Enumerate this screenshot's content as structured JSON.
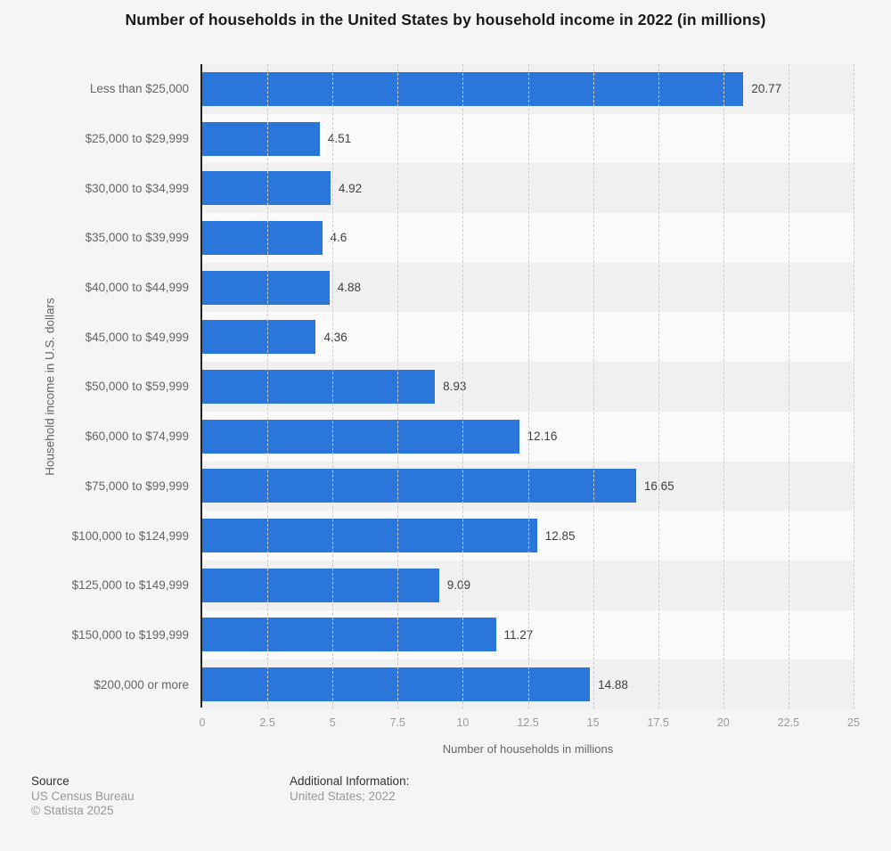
{
  "chart_data": {
    "type": "bar",
    "orientation": "horizontal",
    "title": "Number of households in the United States by household income in 2022 (in millions)",
    "categories": [
      "Less than $25,000",
      "$25,000 to $29,999",
      "$30,000 to $34,999",
      "$35,000 to $39,999",
      "$40,000 to $44,999",
      "$45,000 to $49,999",
      "$50,000 to $59,999",
      "$60,000 to $74,999",
      "$75,000 to $99,999",
      "$100,000 to $124,999",
      "$125,000 to $149,999",
      "$150,000 to $199,999",
      "$200,000 or more"
    ],
    "values": [
      20.77,
      4.51,
      4.92,
      4.6,
      4.88,
      4.36,
      8.93,
      12.16,
      16.65,
      12.85,
      9.09,
      11.27,
      14.88
    ],
    "value_labels": [
      "20.77",
      "4.51",
      "4.92",
      "4.6",
      "4.88",
      "4.36",
      "8.93",
      "12.16",
      "16.65",
      "12.85",
      "9.09",
      "11.27",
      "14.88"
    ],
    "xlabel": "Number of households in millions",
    "ylabel": "Household income in U.S. dollars",
    "xlim": [
      0,
      25
    ],
    "xticks": [
      0,
      2.5,
      5,
      7.5,
      10,
      12.5,
      15,
      17.5,
      20,
      22.5,
      25
    ],
    "xtick_labels": [
      "0",
      "2.5",
      "5",
      "7.5",
      "10",
      "12.5",
      "15",
      "17.5",
      "20",
      "22.5",
      "25"
    ],
    "grid": "vertical-dashed",
    "legend": "none",
    "colors": {
      "bar": "#2a76da",
      "band_odd": "#f0f0f0",
      "band_even": "#fafafa",
      "page_background": "#f5f5f5",
      "gridline": "#cccccc",
      "axis_line": "#222222",
      "title_text": "#1a1a1a",
      "category_text": "#666666",
      "value_text": "#404040",
      "tick_text": "#999999"
    }
  },
  "footer": {
    "source_label": "Source",
    "source_lines": [
      "US Census Bureau",
      "© Statista 2025"
    ],
    "additional_label": "Additional Information:",
    "additional_lines": [
      "United States; 2022"
    ]
  }
}
